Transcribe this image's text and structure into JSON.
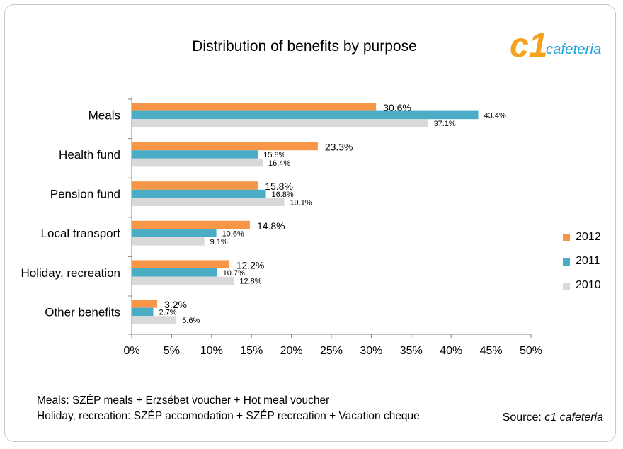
{
  "chart_data": {
    "type": "bar",
    "orientation": "horizontal",
    "title": "Distribution of benefits by purpose",
    "categories": [
      "Meals",
      "Health fund",
      "Pension fund",
      "Local transport",
      "Holiday, recreation",
      "Other benefits"
    ],
    "series": [
      {
        "name": "2012",
        "color": "#f79646",
        "values": [
          30.6,
          23.3,
          15.8,
          14.8,
          12.2,
          3.2
        ]
      },
      {
        "name": "2011",
        "color": "#4bacc6",
        "values": [
          43.4,
          15.8,
          16.8,
          10.6,
          10.7,
          2.7
        ]
      },
      {
        "name": "2010",
        "color": "#d9d9d9",
        "values": [
          37.1,
          16.4,
          19.1,
          9.1,
          12.8,
          5.6
        ]
      }
    ],
    "xlim": [
      0,
      50
    ],
    "x_ticks": [
      "0%",
      "5%",
      "10%",
      "15%",
      "20%",
      "25%",
      "30%",
      "35%",
      "40%",
      "45%",
      "50%"
    ],
    "value_suffix": "%",
    "grid": false,
    "legend_position": "right"
  },
  "logo": {
    "mark": "c1",
    "text": "cafeteria"
  },
  "notes": [
    "Meals: SZÉP meals + Erzsébet voucher + Hot meal voucher",
    "Holiday, recreation: SZÉP accomodation + SZÉP recreation + Vacation cheque"
  ],
  "source": {
    "prefix": "Source: ",
    "name": "c1 cafeteria"
  }
}
